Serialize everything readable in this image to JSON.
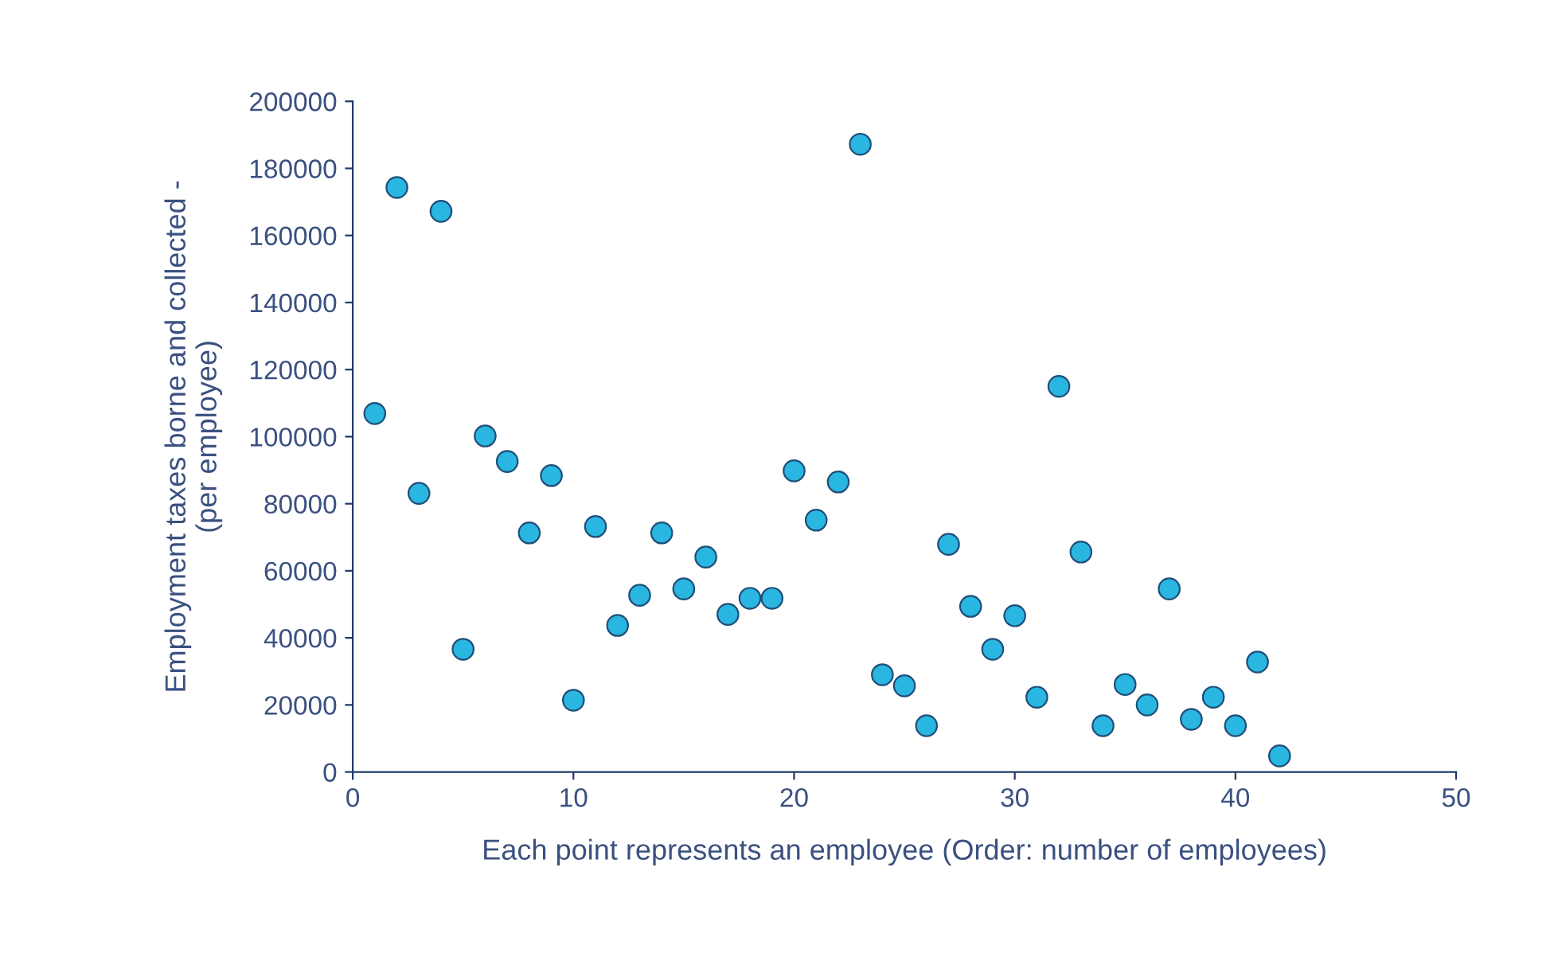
{
  "chart_data": {
    "type": "scatter",
    "xlabel": "Each point represents an employee (Order: number of employees)",
    "ylabel": "Employment taxes borne and collected -\n(per employee)",
    "x": [
      1,
      2,
      3,
      4,
      5,
      6,
      7,
      8,
      9,
      10,
      11,
      12,
      13,
      14,
      15,
      16,
      17,
      18,
      19,
      20,
      21,
      22,
      23,
      24,
      25,
      26,
      27,
      28,
      29,
      30,
      31,
      32,
      33,
      34,
      35,
      36,
      37,
      38,
      39,
      40,
      41,
      42
    ],
    "series": [
      {
        "color": "#29b6e0",
        "values": [
          106900,
          174300,
          83100,
          167200,
          36600,
          100200,
          92600,
          71300,
          88400,
          21400,
          73200,
          43700,
          52700,
          71300,
          54600,
          64100,
          47000,
          51800,
          51800,
          89800,
          75100,
          86500,
          187200,
          29000,
          25700,
          13800,
          67900,
          49400,
          36600,
          46600,
          22300,
          115000,
          65600,
          13800,
          26100,
          20000,
          54600,
          15700,
          22300,
          13800,
          32800,
          4800
        ]
      }
    ],
    "xlim": [
      0,
      50
    ],
    "xticks": [
      0,
      10,
      20,
      30,
      40,
      50
    ],
    "ylim": [
      0,
      200000
    ],
    "yticks": [
      0,
      20000,
      40000,
      60000,
      80000,
      100000,
      120000,
      140000,
      160000,
      180000,
      200000
    ],
    "marker": "circle",
    "grid": false,
    "legend": false
  }
}
